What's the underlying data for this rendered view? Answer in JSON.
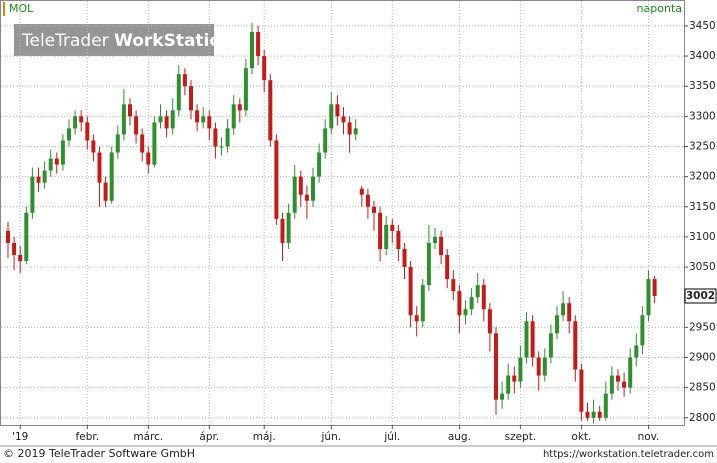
{
  "chart_data": {
    "type": "candlestick",
    "symbol": "MOL",
    "interval": "naponta",
    "watermark": [
      "TeleTrader",
      "WorkStation"
    ],
    "footer_left": "© 2019 TeleTrader Software GmbH",
    "footer_right": "https://workstation.teletrader.com",
    "categories": [
      null,
      null,
      "'19",
      null,
      null,
      null,
      null,
      null,
      null,
      null,
      null,
      null,
      null,
      "febr.",
      null,
      null,
      null,
      null,
      null,
      null,
      null,
      null,
      null,
      "márc.",
      null,
      null,
      null,
      null,
      null,
      null,
      null,
      null,
      null,
      "ápr.",
      null,
      null,
      null,
      null,
      null,
      null,
      null,
      null,
      "máj.",
      null,
      null,
      null,
      null,
      null,
      null,
      null,
      null,
      null,
      null,
      "jún.",
      null,
      null,
      null,
      null,
      null,
      null,
      null,
      null,
      null,
      "júl.",
      null,
      null,
      null,
      null,
      null,
      null,
      null,
      null,
      null,
      null,
      "aug.",
      null,
      null,
      null,
      null,
      null,
      null,
      null,
      null,
      null,
      "szept.",
      null,
      null,
      null,
      null,
      null,
      null,
      null,
      null,
      null,
      "okt.",
      null,
      null,
      null,
      null,
      null,
      null,
      null,
      null,
      null,
      null,
      "nov.",
      null
    ],
    "open": [
      3110,
      3090,
      3070,
      3060,
      3140,
      3200,
      3190,
      3210,
      3230,
      3220,
      3260,
      3280,
      3300,
      3290,
      3260,
      3240,
      3190,
      3160,
      3240,
      3270,
      3320,
      3300,
      3270,
      3240,
      3220,
      3290,
      3300,
      3280,
      3310,
      3370,
      3350,
      3310,
      3290,
      3300,
      3280,
      3250,
      3250,
      3280,
      3320,
      3310,
      3380,
      3440,
      3400,
      3360,
      3260,
      3130,
      3090,
      3140,
      3200,
      3170,
      3160,
      3200,
      3240,
      3280,
      3320,
      3300,
      3290,
      3270,
      3180,
      3170,
      3150,
      3140,
      3080,
      3120,
      3110,
      3080,
      3050,
      2970,
      2960,
      3020,
      3090,
      3100,
      3070,
      3030,
      3010,
      2970,
      2980,
      3000,
      3020,
      2980,
      2940,
      2830,
      2840,
      2870,
      2860,
      2900,
      2960,
      2900,
      2870,
      2900,
      2940,
      2970,
      2990,
      2960,
      2880,
      2810,
      2800,
      2810,
      2800,
      2840,
      2870,
      2860,
      2850,
      2900,
      2920,
      2970,
      3030
    ],
    "high": [
      3125,
      3100,
      3085,
      3150,
      3215,
      3215,
      3225,
      3245,
      3240,
      3270,
      3295,
      3310,
      3310,
      3300,
      3270,
      3250,
      3200,
      3250,
      3285,
      3345,
      3330,
      3310,
      3280,
      3250,
      3300,
      3320,
      3310,
      3330,
      3385,
      3380,
      3360,
      3320,
      3315,
      3310,
      3290,
      3265,
      3295,
      3335,
      3330,
      3395,
      3455,
      3450,
      3410,
      3370,
      3270,
      3140,
      3155,
      3220,
      3210,
      3185,
      3215,
      3255,
      3295,
      3340,
      3335,
      3315,
      3300,
      3295,
      3185,
      3180,
      3160,
      3150,
      3135,
      3130,
      3120,
      3090,
      3060,
      2985,
      3030,
      3120,
      3115,
      3110,
      3080,
      3045,
      3020,
      2995,
      3015,
      3040,
      3030,
      2990,
      2950,
      2860,
      2890,
      2885,
      2920,
      2975,
      2970,
      2910,
      2915,
      2955,
      2985,
      3010,
      3000,
      2970,
      2890,
      2825,
      2830,
      2820,
      2860,
      2885,
      2880,
      2875,
      2915,
      2940,
      2985,
      3045,
      3035
    ],
    "low": [
      3065,
      3045,
      3040,
      3055,
      3130,
      3175,
      3180,
      3200,
      3205,
      3210,
      3250,
      3270,
      3275,
      3245,
      3225,
      3150,
      3150,
      3155,
      3230,
      3260,
      3285,
      3255,
      3225,
      3205,
      3215,
      3280,
      3265,
      3270,
      3300,
      3335,
      3295,
      3275,
      3280,
      3260,
      3230,
      3235,
      3240,
      3270,
      3290,
      3300,
      3370,
      3385,
      3340,
      3250,
      3120,
      3060,
      3080,
      3130,
      3150,
      3130,
      3150,
      3190,
      3230,
      3270,
      3285,
      3270,
      3240,
      3260,
      3150,
      3130,
      3110,
      3060,
      3070,
      3090,
      3060,
      3030,
      2950,
      2935,
      2950,
      3010,
      3080,
      3055,
      3015,
      2995,
      2940,
      2955,
      2970,
      2990,
      2960,
      2910,
      2805,
      2815,
      2830,
      2840,
      2850,
      2890,
      2885,
      2845,
      2860,
      2890,
      2930,
      2960,
      2940,
      2860,
      2795,
      2795,
      2790,
      2795,
      2795,
      2830,
      2845,
      2835,
      2840,
      2885,
      2905,
      2960,
      2990
    ],
    "close": [
      3090,
      3070,
      3060,
      3140,
      3200,
      3190,
      3210,
      3230,
      3220,
      3260,
      3280,
      3300,
      3290,
      3260,
      3240,
      3190,
      3160,
      3240,
      3270,
      3320,
      3300,
      3270,
      3240,
      3220,
      3290,
      3300,
      3280,
      3310,
      3370,
      3350,
      3310,
      3290,
      3300,
      3280,
      3250,
      3250,
      3280,
      3320,
      3310,
      3380,
      3440,
      3400,
      3360,
      3260,
      3130,
      3090,
      3140,
      3200,
      3170,
      3160,
      3200,
      3240,
      3280,
      3320,
      3300,
      3290,
      3270,
      3280,
      3170,
      3150,
      3140,
      3080,
      3120,
      3110,
      3080,
      3050,
      2970,
      2960,
      3020,
      3090,
      3100,
      3070,
      3030,
      3010,
      2970,
      2980,
      3000,
      3020,
      2980,
      2940,
      2830,
      2840,
      2870,
      2860,
      2900,
      2960,
      2900,
      2870,
      2900,
      2940,
      2970,
      2990,
      2960,
      2880,
      2810,
      2800,
      2810,
      2800,
      2840,
      2870,
      2860,
      2850,
      2900,
      2920,
      2970,
      3030,
      3002
    ],
    "up_color": "#2f8f2f",
    "down_color": "#c41a1a",
    "ylim": [
      2788,
      3493
    ],
    "yticks": [
      2800,
      2850,
      2900,
      2950,
      3050,
      3100,
      3150,
      3200,
      3250,
      3300,
      3350,
      3400,
      3450
    ],
    "grid": true
  }
}
